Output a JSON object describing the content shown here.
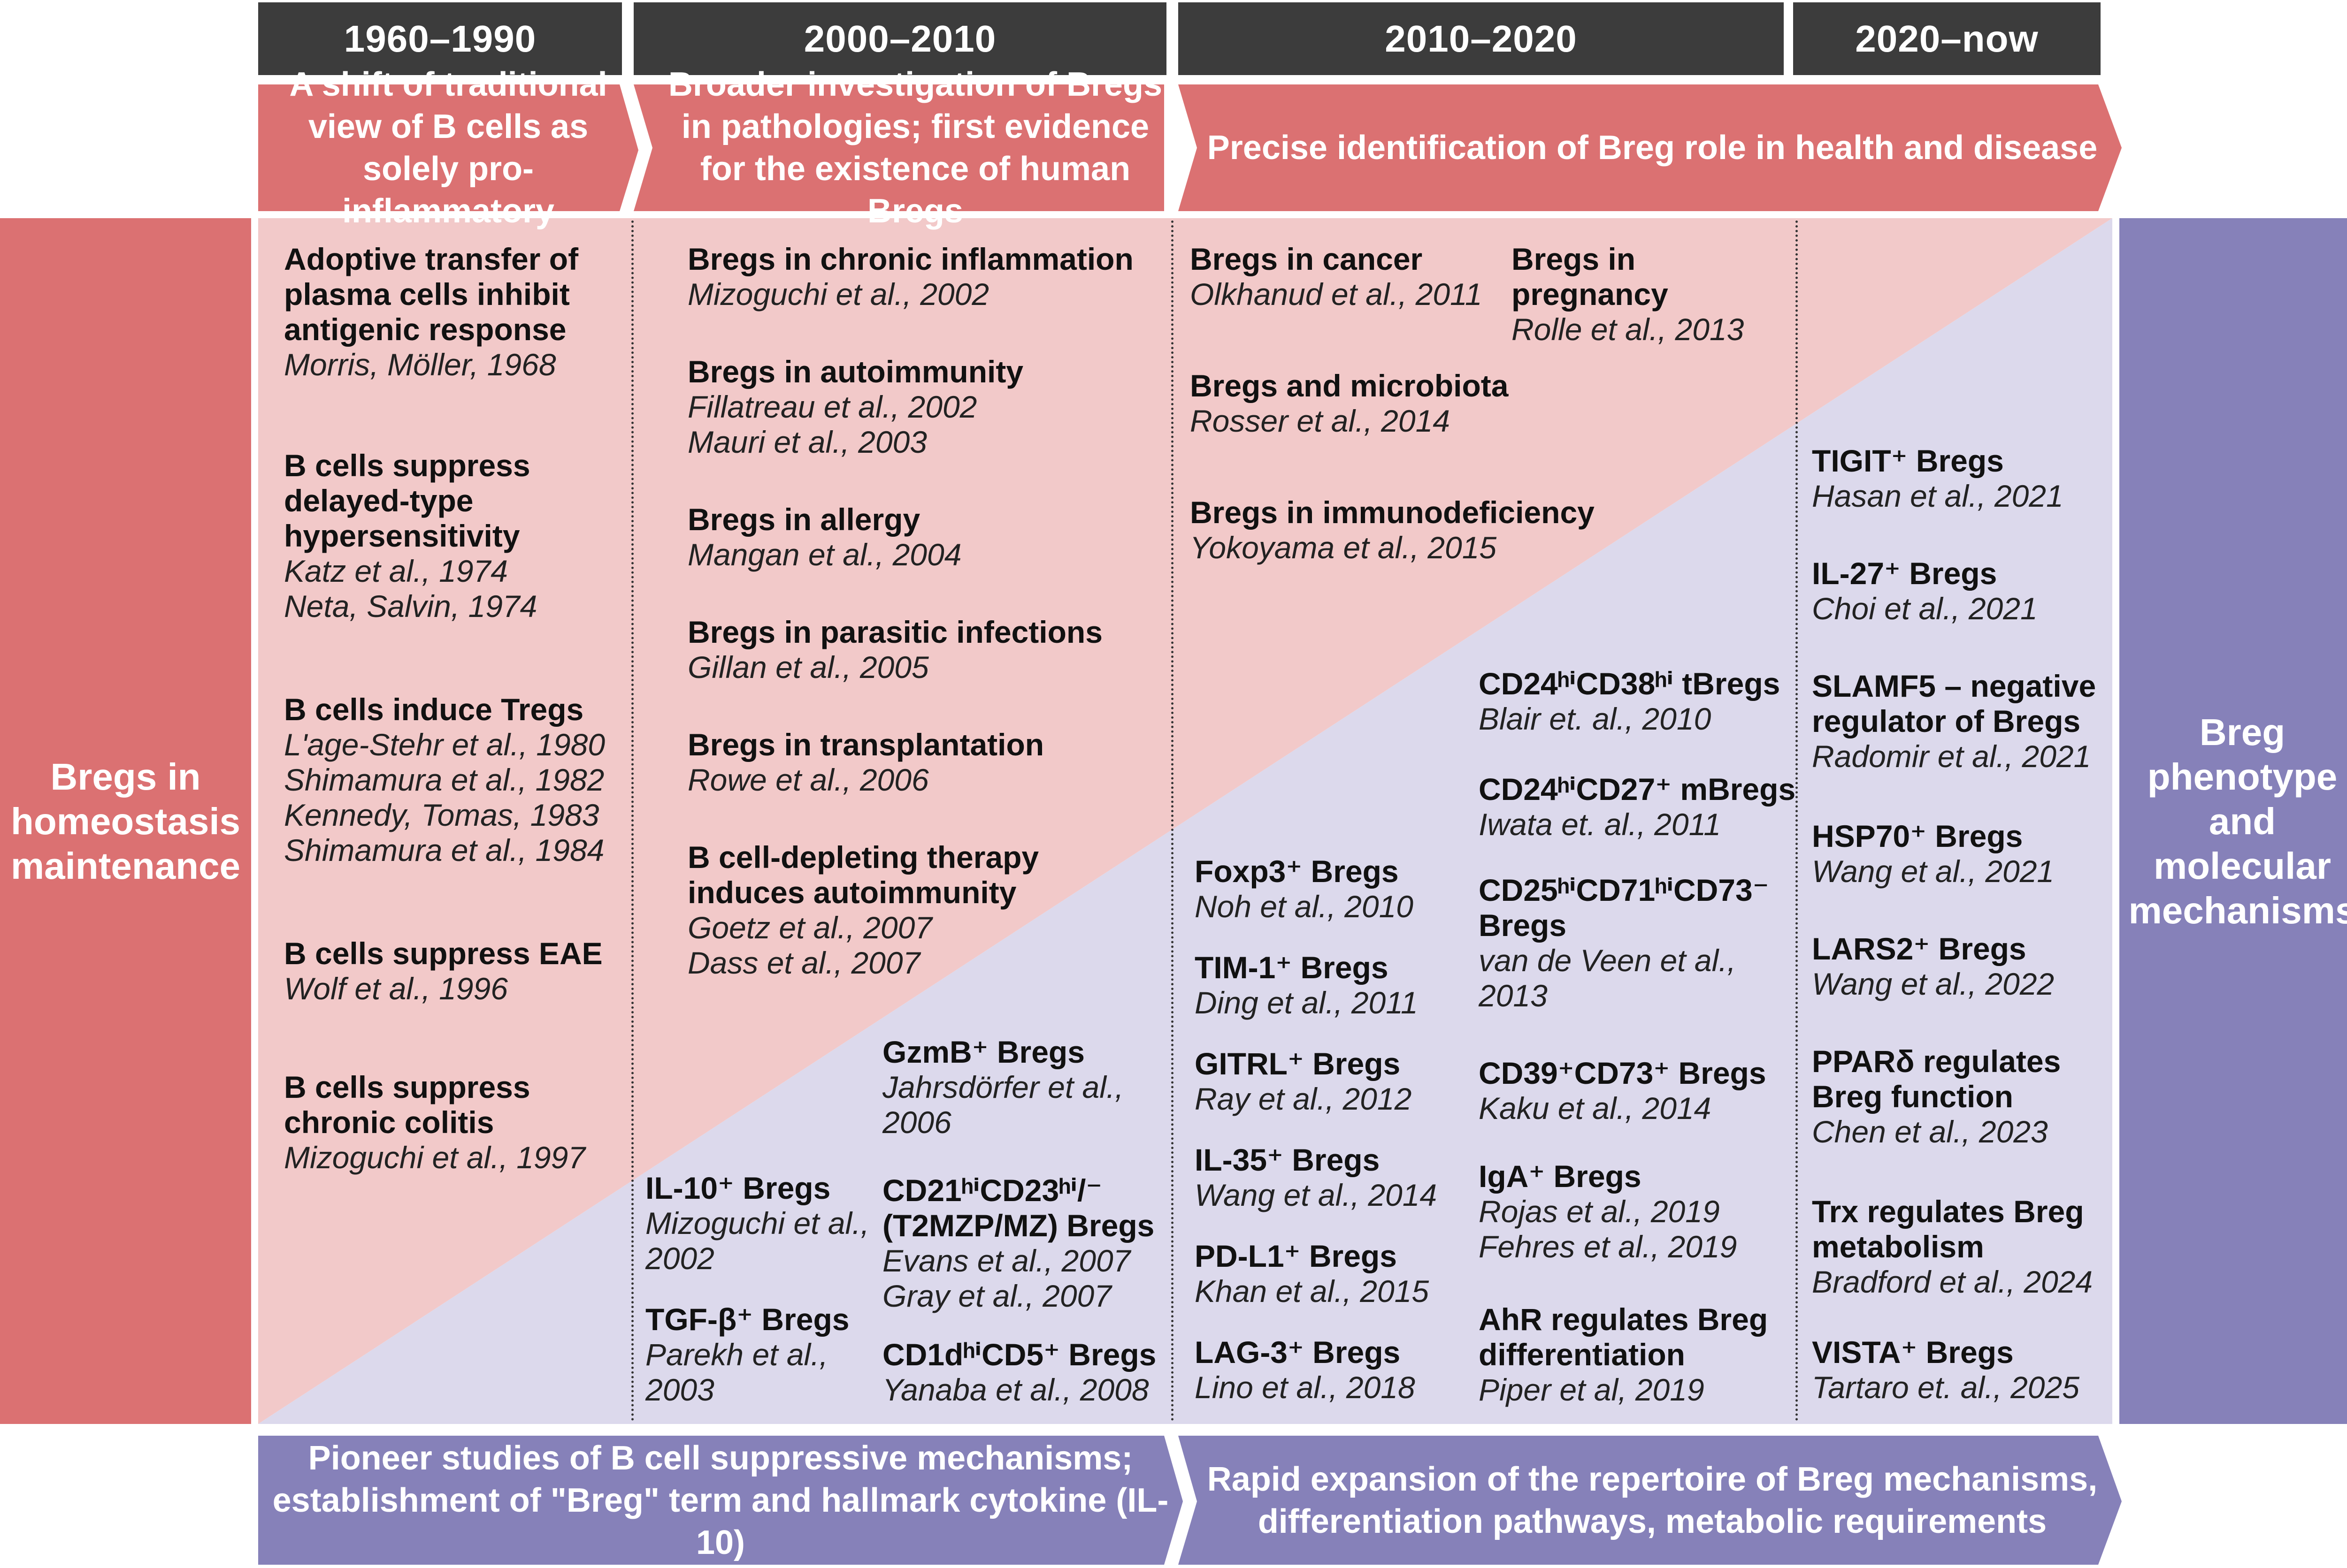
{
  "colors": {
    "red": "#db7172",
    "pink": "#f2c9c9",
    "lavender": "#dcd9ec",
    "purple": "#8681b9",
    "header": "#3c3c3c"
  },
  "headers": [
    "1960–1990",
    "2000–2010",
    "2010–2020",
    "2020–now"
  ],
  "top_bands": [
    "A shift of traditional view of B cells as solely pro-inflammatory",
    "Broader investigation of Bregs in pathologies; first evidence for the existence of human Bregs",
    "Precise identification of Breg role in health and disease"
  ],
  "bottom_bands": [
    "Pioneer studies of B cell suppressive mechanisms; establishment of \"Breg\" term and hallmark cytokine (IL-10)",
    "Rapid expansion of the repertoire of Breg mechanisms, differentiation pathways, metabolic requirements"
  ],
  "left_label": "Bregs in homeostasis maintenance",
  "right_label": "Breg phenotype and molecular mechanisms",
  "entries": [
    {
      "title": "Adoptive transfer of plasma cells inhibit antigenic response",
      "refs": [
        "Morris, Möller, 1968"
      ]
    },
    {
      "title": "B cells suppress delayed-type hypersensitivity",
      "refs": [
        "Katz et al., 1974",
        "Neta, Salvin, 1974"
      ]
    },
    {
      "title": "B cells induce Tregs",
      "refs": [
        "L'age-Stehr et al., 1980",
        "Shimamura et al., 1982",
        "Kennedy, Tomas, 1983",
        "Shimamura et al., 1984"
      ]
    },
    {
      "title": "B cells suppress EAE",
      "refs": [
        "Wolf et al., 1996"
      ]
    },
    {
      "title": "B cells suppress chronic colitis",
      "refs": [
        "Mizoguchi et al., 1997"
      ]
    },
    {
      "title": "Bregs in chronic inflammation",
      "refs": [
        "Mizoguchi et al., 2002"
      ]
    },
    {
      "title": "Bregs in autoimmunity",
      "refs": [
        "Fillatreau et al., 2002",
        "Mauri et al., 2003"
      ]
    },
    {
      "title": "Bregs in allergy",
      "refs": [
        "Mangan et al., 2004"
      ]
    },
    {
      "title": "Bregs in parasitic infections",
      "refs": [
        "Gillan et al., 2005"
      ]
    },
    {
      "title": "Bregs in transplantation",
      "refs": [
        "Rowe et al., 2006"
      ]
    },
    {
      "title": "B cell-depleting therapy induces autoimmunity",
      "refs": [
        "Goetz et al., 2007",
        "Dass et al., 2007"
      ]
    },
    {
      "title": "GzmB⁺ Bregs",
      "refs": [
        "Jahrsdörfer et al., 2006"
      ]
    },
    {
      "title": "IL-10⁺ Bregs",
      "refs": [
        "Mizoguchi et al., 2002"
      ]
    },
    {
      "title": "CD21ʰⁱCD23ʰⁱ/⁻ (T2MZP/MZ) Bregs",
      "refs": [
        "Evans et al., 2007",
        "Gray et al., 2007"
      ]
    },
    {
      "title": "TGF-β⁺ Bregs",
      "refs": [
        "Parekh et al., 2003"
      ]
    },
    {
      "title": "CD1dʰⁱCD5⁺ Bregs",
      "refs": [
        "Yanaba et al., 2008"
      ]
    },
    {
      "title": "Bregs in cancer",
      "refs": [
        "Olkhanud et al., 2011"
      ]
    },
    {
      "title": "Bregs in pregnancy",
      "refs": [
        "Rolle et al., 2013"
      ]
    },
    {
      "title": "Bregs and microbiota",
      "refs": [
        "Rosser et al., 2014"
      ]
    },
    {
      "title": "Bregs in immunodeficiency",
      "refs": [
        "Yokoyama et al., 2015"
      ]
    },
    {
      "title": "CD24ʰⁱCD38ʰⁱ tBregs",
      "refs": [
        "Blair et. al., 2010"
      ]
    },
    {
      "title": "CD24ʰⁱCD27⁺ mBregs",
      "refs": [
        "Iwata et. al., 2011"
      ]
    },
    {
      "title": "Foxp3⁺ Bregs",
      "refs": [
        "Noh et al., 2010"
      ]
    },
    {
      "title": "CD25ʰⁱCD71ʰⁱCD73⁻ Bregs",
      "refs": [
        "van de Veen et al., 2013"
      ]
    },
    {
      "title": "TIM-1⁺ Bregs",
      "refs": [
        "Ding et al., 2011"
      ]
    },
    {
      "title": "GITRL⁺ Bregs",
      "refs": [
        "Ray et al., 2012"
      ]
    },
    {
      "title": "CD39⁺CD73⁺ Bregs",
      "refs": [
        "Kaku et al., 2014"
      ]
    },
    {
      "title": "IL-35⁺ Bregs",
      "refs": [
        "Wang et al., 2014"
      ]
    },
    {
      "title": "IgA⁺ Bregs",
      "refs": [
        "Rojas et al., 2019",
        "Fehres et al., 2019"
      ]
    },
    {
      "title": "PD-L1⁺ Bregs",
      "refs": [
        "Khan et al., 2015"
      ]
    },
    {
      "title": "AhR regulates Breg differentiation",
      "refs": [
        "Piper et al, 2019"
      ]
    },
    {
      "title": "LAG-3⁺ Bregs",
      "refs": [
        "Lino et al., 2018"
      ]
    },
    {
      "title": "TIGIT⁺ Bregs",
      "refs": [
        "Hasan et al., 2021"
      ]
    },
    {
      "title": "IL-27⁺ Bregs",
      "refs": [
        "Choi et al., 2021"
      ]
    },
    {
      "title": "SLAMF5 – negative regulator of Bregs",
      "refs": [
        "Radomir et al., 2021"
      ]
    },
    {
      "title": "HSP70⁺ Bregs",
      "refs": [
        "Wang et al., 2021"
      ]
    },
    {
      "title": "LARS2⁺ Bregs",
      "refs": [
        "Wang et al., 2022"
      ]
    },
    {
      "title": "PPARδ regulates Breg function",
      "refs": [
        "Chen et al., 2023"
      ]
    },
    {
      "title": "Trx regulates Breg metabolism",
      "refs": [
        "Bradford et al., 2024"
      ]
    },
    {
      "title": "VISTA⁺ Bregs",
      "refs": [
        "Tartaro et. al., 2025"
      ]
    }
  ]
}
